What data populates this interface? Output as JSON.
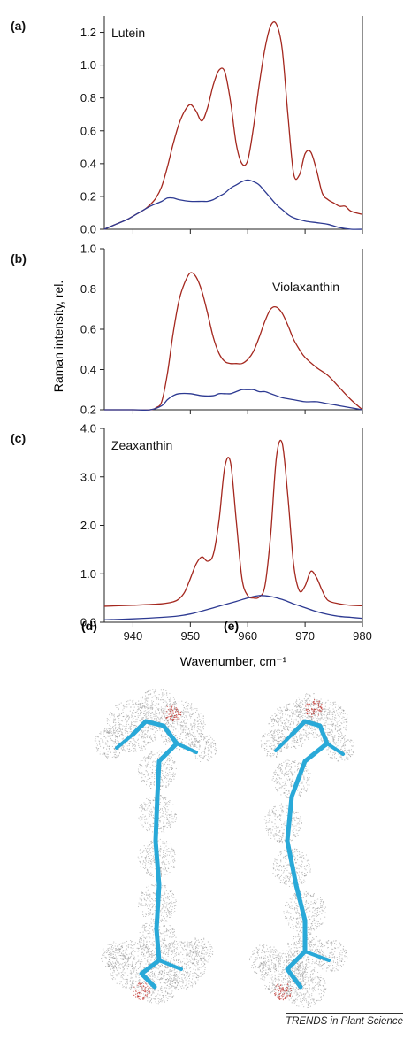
{
  "figure": {
    "credit": "TRENDS in Plant Science",
    "molecule_labels": [
      "(d)",
      "(e)"
    ]
  },
  "colors": {
    "high": "#a4271e",
    "low": "#2d3a92",
    "axis": "#222222",
    "stick": "#29a9d8",
    "dots": "#9a9a9a",
    "oxygen": "#c0302a"
  },
  "icons": {
    "molecule_d": "carotenoid-straight-model-icon",
    "molecule_e": "carotenoid-twisted-model-icon"
  },
  "shared": {
    "xlabel": "Wavenumber, cm⁻¹",
    "ylabel": "Raman intensity, rel."
  },
  "chart_data": [
    {
      "type": "line",
      "panel": "(a)",
      "title": "Lutein",
      "xlim": [
        935,
        980
      ],
      "ylim": [
        0,
        1.3
      ],
      "xticks": [
        940,
        950,
        960,
        970,
        980
      ],
      "yticks": [
        0.0,
        0.2,
        0.4,
        0.6,
        0.8,
        1.0,
        1.2
      ],
      "yticklabels": [
        "0.0",
        "0.2",
        "0.4",
        "0.6",
        "0.8",
        "1.0",
        "1.2"
      ],
      "show_xticklabels": false,
      "series": [
        {
          "color": "#a4271e",
          "x": [
            935,
            937,
            939,
            940,
            942,
            943,
            944,
            945,
            946,
            947,
            948,
            949,
            950,
            951,
            952,
            953,
            954,
            955,
            956,
            957,
            958,
            959,
            960,
            961,
            962,
            963,
            964,
            965,
            966,
            967,
            968,
            969,
            970,
            971,
            972,
            973,
            974,
            975,
            976,
            977,
            978,
            980
          ],
          "y": [
            0.0,
            0.03,
            0.06,
            0.08,
            0.12,
            0.15,
            0.19,
            0.26,
            0.38,
            0.52,
            0.64,
            0.72,
            0.76,
            0.72,
            0.66,
            0.74,
            0.88,
            0.97,
            0.96,
            0.78,
            0.52,
            0.4,
            0.42,
            0.62,
            0.88,
            1.1,
            1.24,
            1.25,
            1.1,
            0.7,
            0.34,
            0.33,
            0.46,
            0.47,
            0.36,
            0.22,
            0.18,
            0.16,
            0.14,
            0.14,
            0.11,
            0.09
          ]
        },
        {
          "color": "#2d3a92",
          "x": [
            935,
            937,
            939,
            941,
            943,
            945,
            946,
            947,
            948,
            950,
            952,
            953,
            954,
            955,
            956,
            957,
            958,
            959,
            960,
            961,
            962,
            963,
            964,
            965,
            966,
            967,
            968,
            970,
            972,
            974,
            976,
            978,
            980
          ],
          "y": [
            0.0,
            0.03,
            0.06,
            0.1,
            0.14,
            0.17,
            0.19,
            0.19,
            0.18,
            0.17,
            0.17,
            0.17,
            0.18,
            0.2,
            0.22,
            0.25,
            0.27,
            0.29,
            0.3,
            0.29,
            0.27,
            0.23,
            0.19,
            0.15,
            0.12,
            0.09,
            0.07,
            0.05,
            0.04,
            0.03,
            0.01,
            0.0,
            0.0
          ]
        }
      ]
    },
    {
      "type": "line",
      "panel": "(b)",
      "title": "Violaxanthin",
      "xlim": [
        935,
        980
      ],
      "ylim": [
        0.2,
        1.0
      ],
      "xticks": [
        940,
        950,
        960,
        970,
        980
      ],
      "yticks": [
        0.2,
        0.4,
        0.6,
        0.8,
        1.0
      ],
      "yticklabels": [
        "0.2",
        "0.4",
        "0.6",
        "0.8",
        "1.0"
      ],
      "extra_yticklabels": [
        [
          "0.2",
          0.2
        ]
      ],
      "show_xticklabels": false,
      "series": [
        {
          "color": "#a4271e",
          "x": [
            935,
            940,
            943,
            944,
            945,
            946,
            947,
            948,
            949,
            950,
            951,
            952,
            953,
            954,
            955,
            956,
            957,
            958,
            959,
            960,
            961,
            962,
            963,
            964,
            965,
            966,
            967,
            968,
            969,
            970,
            972,
            974,
            976,
            978,
            980
          ],
          "y": [
            0.2,
            0.2,
            0.2,
            0.21,
            0.24,
            0.38,
            0.58,
            0.74,
            0.83,
            0.88,
            0.86,
            0.79,
            0.68,
            0.56,
            0.48,
            0.44,
            0.43,
            0.43,
            0.43,
            0.45,
            0.49,
            0.56,
            0.64,
            0.7,
            0.71,
            0.68,
            0.62,
            0.55,
            0.5,
            0.46,
            0.41,
            0.37,
            0.31,
            0.25,
            0.2
          ]
        },
        {
          "color": "#2d3a92",
          "x": [
            935,
            940,
            943,
            945,
            946,
            947,
            948,
            950,
            952,
            954,
            955,
            956,
            957,
            958,
            959,
            960,
            961,
            962,
            963,
            964,
            965,
            966,
            968,
            970,
            972,
            974,
            976,
            978,
            980
          ],
          "y": [
            0.2,
            0.2,
            0.2,
            0.22,
            0.25,
            0.27,
            0.28,
            0.28,
            0.27,
            0.27,
            0.28,
            0.28,
            0.28,
            0.29,
            0.3,
            0.3,
            0.3,
            0.29,
            0.29,
            0.28,
            0.27,
            0.26,
            0.25,
            0.24,
            0.24,
            0.23,
            0.22,
            0.21,
            0.2
          ]
        }
      ]
    },
    {
      "type": "line",
      "panel": "(c)",
      "title": "Zeaxanthin",
      "xlim": [
        935,
        980
      ],
      "ylim": [
        0,
        4.0
      ],
      "xticks": [
        940,
        950,
        960,
        970,
        980
      ],
      "yticks": [
        0.0,
        1.0,
        2.0,
        3.0,
        4.0
      ],
      "yticklabels": [
        "0.0",
        "1.0",
        "2.0",
        "3.0",
        "4.0"
      ],
      "show_xticklabels": true,
      "xticklabels": [
        "940",
        "950",
        "960",
        "970",
        "980"
      ],
      "series": [
        {
          "color": "#a4271e",
          "x": [
            935,
            940,
            945,
            947,
            948,
            949,
            950,
            951,
            952,
            953,
            954,
            955,
            956,
            957,
            958,
            959,
            960,
            961,
            962,
            963,
            964,
            965,
            966,
            967,
            968,
            969,
            970,
            971,
            972,
            973,
            974,
            976,
            978,
            980
          ],
          "y": [
            0.33,
            0.35,
            0.38,
            0.42,
            0.48,
            0.62,
            0.9,
            1.2,
            1.35,
            1.26,
            1.4,
            2.1,
            3.2,
            3.3,
            2.1,
            0.9,
            0.55,
            0.5,
            0.52,
            0.75,
            1.8,
            3.4,
            3.7,
            2.6,
            1.2,
            0.65,
            0.75,
            1.05,
            0.92,
            0.65,
            0.45,
            0.38,
            0.35,
            0.34
          ]
        },
        {
          "color": "#2d3a92",
          "x": [
            935,
            940,
            945,
            948,
            950,
            952,
            955,
            958,
            960,
            962,
            964,
            966,
            968,
            970,
            972,
            974,
            976,
            978,
            980
          ],
          "y": [
            0.05,
            0.07,
            0.1,
            0.13,
            0.17,
            0.23,
            0.33,
            0.43,
            0.5,
            0.55,
            0.53,
            0.47,
            0.38,
            0.3,
            0.22,
            0.16,
            0.12,
            0.1,
            0.08
          ]
        }
      ]
    }
  ]
}
